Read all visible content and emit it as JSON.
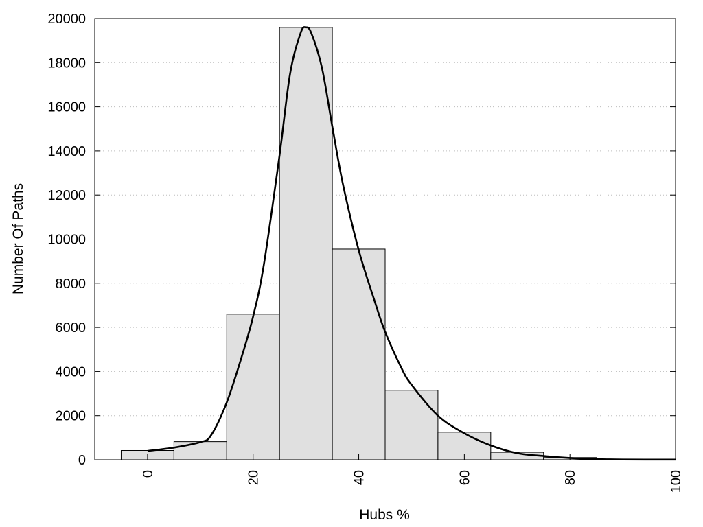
{
  "chart_data": {
    "type": "bar",
    "subtype": "histogram",
    "title": "",
    "xlabel": "Hubs %",
    "ylabel": "Number Of Paths",
    "xlim": [
      -10,
      100
    ],
    "ylim": [
      0,
      20000
    ],
    "bin_width": 10,
    "bins": [
      {
        "center": 0,
        "value": 420
      },
      {
        "center": 10,
        "value": 820
      },
      {
        "center": 20,
        "value": 6600
      },
      {
        "center": 30,
        "value": 19600
      },
      {
        "center": 40,
        "value": 9550
      },
      {
        "center": 50,
        "value": 3150
      },
      {
        "center": 60,
        "value": 1250
      },
      {
        "center": 70,
        "value": 340
      },
      {
        "center": 80,
        "value": 100
      },
      {
        "center": 90,
        "value": 30
      }
    ],
    "x_ticks": [
      "0",
      "20",
      "40",
      "60",
      "80",
      "100"
    ],
    "y_ticks": [
      "0",
      "2000",
      "4000",
      "6000",
      "8000",
      "10000",
      "12000",
      "14000",
      "16000",
      "18000",
      "20000"
    ],
    "grid": {
      "horizontal": true,
      "style": "dotted"
    },
    "bar_color": "#e0e0e0",
    "bar_edge_color": "#000000",
    "curve": {
      "type": "line",
      "color": "#000000",
      "x": [
        0,
        5,
        10,
        12,
        15,
        18,
        20,
        22,
        25,
        27,
        29,
        30,
        31,
        33,
        35,
        37,
        40,
        43,
        45,
        48,
        50,
        55,
        60,
        65,
        70,
        75,
        80,
        85,
        90,
        95,
        100
      ],
      "y": [
        400,
        550,
        800,
        1100,
        2600,
        4800,
        6500,
        8800,
        13800,
        17500,
        19350,
        19600,
        19350,
        17800,
        15100,
        12500,
        9500,
        7200,
        5800,
        4200,
        3400,
        2000,
        1200,
        650,
        300,
        170,
        80,
        30,
        10,
        5,
        5
      ]
    }
  }
}
